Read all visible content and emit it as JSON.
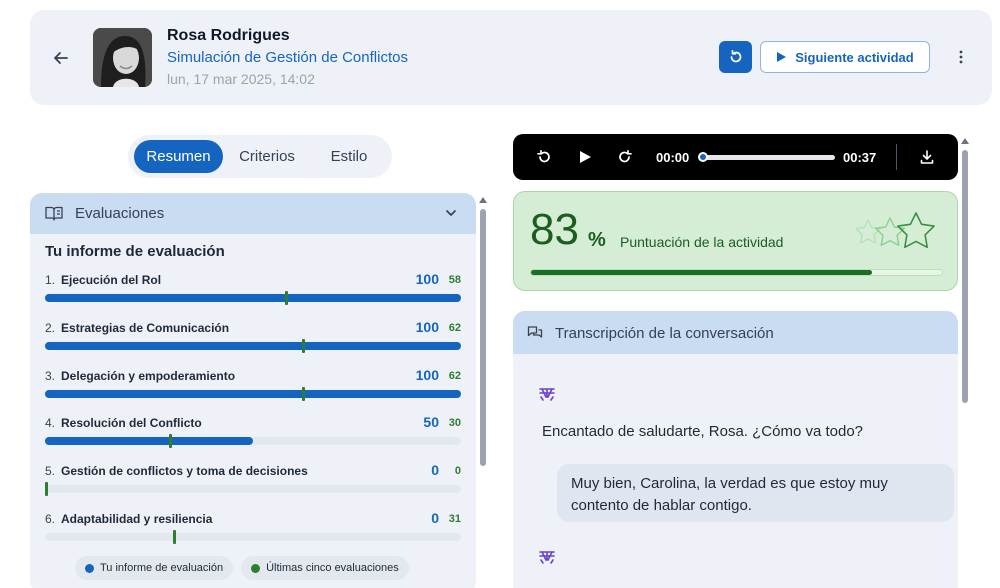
{
  "header": {
    "user_name": "Rosa Rodrigues",
    "activity_title": "Simulación de Gestión de Conflictos",
    "date": "lun, 17 mar 2025, 14:02",
    "next_activity_label": "Siguiente actividad"
  },
  "tabs": [
    {
      "label": "Resumen",
      "active": true
    },
    {
      "label": "Criterios",
      "active": false
    },
    {
      "label": "Estilo",
      "active": false
    }
  ],
  "evaluations": {
    "section_title": "Evaluaciones",
    "report_title": "Tu informe de evaluación",
    "criteria": [
      {
        "num": "1.",
        "label": "Ejecución del Rol",
        "score": "100",
        "average": "58",
        "score_value": 100,
        "average_value": 58
      },
      {
        "num": "2.",
        "label": "Estrategias de Comunicación",
        "score": "100",
        "average": "62",
        "score_value": 100,
        "average_value": 62
      },
      {
        "num": "3.",
        "label": "Delegación y empoderamiento",
        "score": "100",
        "average": "62",
        "score_value": 100,
        "average_value": 62
      },
      {
        "num": "4.",
        "label": "Resolución del Conflicto",
        "score": "50",
        "average": "30",
        "score_value": 50,
        "average_value": 30
      },
      {
        "num": "5.",
        "label": "Gestión de conflictos y toma de decisiones",
        "score": "0",
        "average": "0",
        "score_value": 0,
        "average_value": 0
      },
      {
        "num": "6.",
        "label": "Adaptabilidad y resiliencia",
        "score": "0",
        "average": "31",
        "score_value": 0,
        "average_value": 31
      }
    ],
    "legend": [
      {
        "label": "Tu informe de evaluación",
        "color": "#1565c0"
      },
      {
        "label": "Últimas cinco evaluaciones",
        "color": "#2e7d32"
      }
    ]
  },
  "player": {
    "current_time": "00:00",
    "duration": "00:37",
    "progress": 0
  },
  "score": {
    "value": "83",
    "unit": "%",
    "label": "Puntuación de la actividad",
    "progress": 0.83,
    "stars_filled": 0,
    "stars_total": 3
  },
  "transcript": {
    "title": "Transcripción de la conversación",
    "messages": [
      {
        "role": "bot",
        "text": "Encantado de saludarte, Rosa. ¿Cómo va todo?"
      },
      {
        "role": "user",
        "text": "Muy bien, Carolina, la verdad es que estoy muy contento de hablar contigo."
      }
    ]
  },
  "colors": {
    "primary": "#1565c0",
    "success": "#2e7d32",
    "panel_bg": "#eef2f8",
    "panel_header": "#c9dcf2",
    "score_bg": "#d5edd5"
  },
  "icons": {
    "back": "arrow-left-icon",
    "reset": "refresh-icon",
    "next": "play-icon",
    "more": "more-vertical-icon",
    "evaluations": "book-icon",
    "collapse": "chevron-down-icon",
    "transcript": "chat-icon",
    "bot": "bot-icon",
    "download": "download-icon"
  }
}
